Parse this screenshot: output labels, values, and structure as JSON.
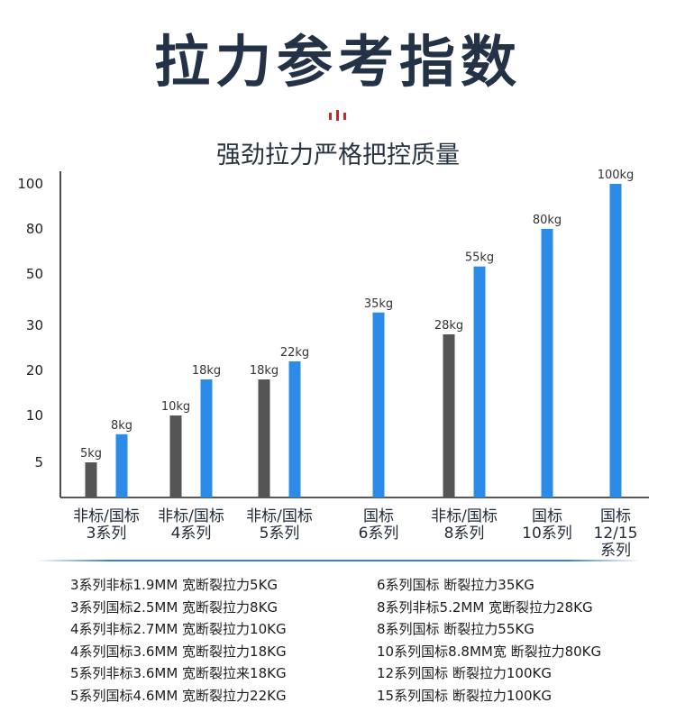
{
  "title": "拉力参考指数",
  "subtitle": "强劲拉力严格把控质量",
  "colors": {
    "standard": "#2b8be6",
    "nonstandard": "#555555",
    "axis": "#222222",
    "accent": "#d0232a"
  },
  "chart_data": {
    "type": "bar",
    "title": "拉力参考指数",
    "subtitle": "强劲拉力严格把控质量",
    "y_ticks": [
      "5",
      "10",
      "20",
      "30",
      "50",
      "80",
      "100"
    ],
    "y_scale": "ordinal-ticks",
    "categories": [
      {
        "lines": [
          "非标/国标",
          "3系列"
        ]
      },
      {
        "lines": [
          "非标/国标",
          "4系列"
        ]
      },
      {
        "lines": [
          "非标/国标",
          "5系列"
        ]
      },
      {
        "lines": [
          "国标",
          "6系列"
        ]
      },
      {
        "lines": [
          "非标/国标",
          "8系列"
        ]
      },
      {
        "lines": [
          "国标",
          "10系列"
        ]
      },
      {
        "lines": [
          "国标",
          "12/15",
          "系列"
        ]
      }
    ],
    "bars": [
      {
        "category": 0,
        "series": "非标",
        "value": 5,
        "label": "5kg"
      },
      {
        "category": 0,
        "series": "国标",
        "value": 8,
        "label": "8kg"
      },
      {
        "category": 1,
        "series": "非标",
        "value": 10,
        "label": "10kg"
      },
      {
        "category": 1,
        "series": "国标",
        "value": 18,
        "label": "18kg"
      },
      {
        "category": 2,
        "series": "非标",
        "value": 18,
        "label": "18kg"
      },
      {
        "category": 2,
        "series": "国标",
        "value": 22,
        "label": "22kg"
      },
      {
        "category": 3,
        "series": "国标",
        "value": 35,
        "label": "35kg"
      },
      {
        "category": 4,
        "series": "非标",
        "value": 28,
        "label": "28kg"
      },
      {
        "category": 4,
        "series": "国标",
        "value": 55,
        "label": "55kg"
      },
      {
        "category": 5,
        "series": "国标",
        "value": 80,
        "label": "80kg"
      },
      {
        "category": 6,
        "series": "国标",
        "value": 100,
        "label": "100kg"
      }
    ]
  },
  "notes_left": [
    "3系列非标1.9MM 宽断裂拉力5KG",
    "3系列国标2.5MM 宽断裂拉力8KG",
    "4系列非标2.7MM 宽断裂拉力10KG",
    "4系列国标3.6MM 宽断裂拉力18KG",
    "5系列非标3.6MM 宽断裂拉来18KG",
    "5系列国标4.6MM 宽断裂拉力22KG"
  ],
  "notes_right": [
    "6系列国标  断裂拉力35KG",
    "8系列非标5.2MM  宽断裂拉力28KG",
    "8系列国标 断裂拉力55KG",
    "10系列国标8.8MM宽 断裂拉力80KG",
    "12系列国标 断裂拉力100KG",
    "15系列国标 断裂拉力100KG"
  ]
}
